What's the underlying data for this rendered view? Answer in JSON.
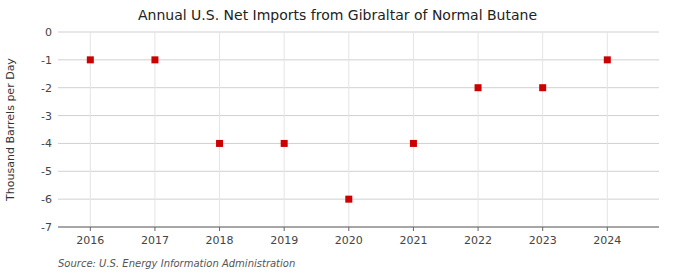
{
  "chart_data": {
    "type": "scatter",
    "title": "Annual U.S. Net Imports from Gibraltar of Normal Butane",
    "y_label": "Thousand Barrels per Day",
    "source": "Source: U.S. Energy Information Administration",
    "x": [
      2016,
      2017,
      2018,
      2019,
      2020,
      2021,
      2022,
      2023,
      2024
    ],
    "values": [
      -1,
      -1,
      -4,
      -4,
      -6,
      -4,
      -2,
      -2,
      -1
    ],
    "color": "#cc0000",
    "marker": "square",
    "xlim": [
      2015.5,
      2024.8
    ],
    "xticks": [
      2016,
      2017,
      2018,
      2019,
      2020,
      2021,
      2022,
      2023,
      2024
    ],
    "ylim": [
      -7,
      0
    ],
    "yticks": [
      0,
      -1,
      -2,
      -3,
      -4,
      -5,
      -6,
      -7
    ],
    "grid": true
  }
}
